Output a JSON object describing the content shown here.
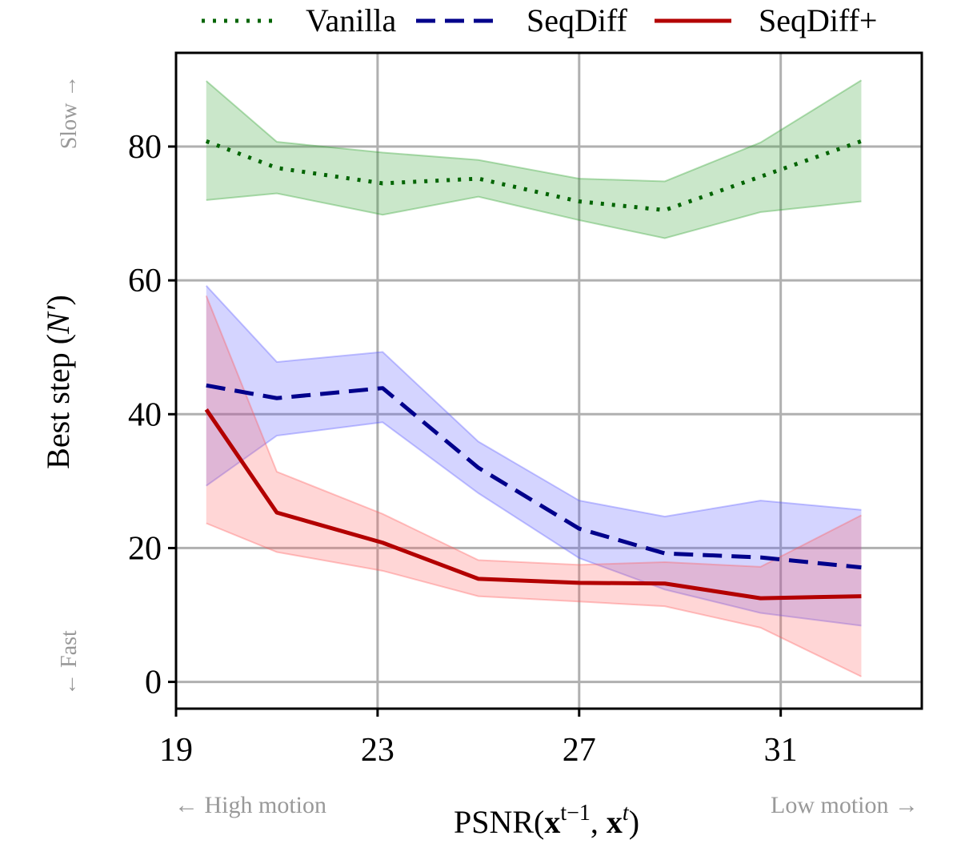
{
  "chart_data": {
    "type": "line",
    "xlabel": {
      "base": "PSNR(",
      "x1": "x",
      "sup1": "t−1",
      "sep": ", ",
      "x2": "x",
      "sup2": "t",
      "end": ")"
    },
    "ylabel": {
      "prefix": "Best step (",
      "var": "N′",
      "suffix": ")"
    },
    "xlim": [
      19,
      33.8
    ],
    "ylim": [
      -4,
      94
    ],
    "xticks": [
      19,
      23,
      27,
      31
    ],
    "yticks": [
      0,
      20,
      40,
      60,
      80
    ],
    "grid": true,
    "legend_position": "top-outside",
    "annotations": {
      "y_top": "Slow →",
      "y_bottom": "← Fast",
      "x_left": "← High motion",
      "x_right": "Low motion →"
    },
    "x": [
      19.6,
      21.0,
      23.1,
      25.0,
      27.0,
      28.7,
      30.6,
      32.6
    ],
    "series": [
      {
        "name": "Vanilla",
        "style": "dotted",
        "color": "#006400",
        "fill": "#2ca02c",
        "values": [
          80.8,
          76.8,
          74.5,
          75.2,
          71.8,
          70.5,
          75.5,
          80.8
        ],
        "lower": [
          72.0,
          73.0,
          69.8,
          72.5,
          69.0,
          66.3,
          70.2,
          71.8
        ],
        "upper": [
          89.8,
          80.7,
          79.1,
          78.0,
          75.2,
          74.8,
          80.6,
          89.9
        ]
      },
      {
        "name": "SeqDiff",
        "style": "dashed",
        "color": "#00008b",
        "fill": "#5555ff",
        "values": [
          44.3,
          42.4,
          43.9,
          32.0,
          22.9,
          19.2,
          18.6,
          17.1
        ],
        "lower": [
          29.3,
          36.8,
          38.8,
          28.2,
          18.5,
          13.8,
          10.3,
          8.4
        ],
        "upper": [
          59.2,
          47.8,
          49.3,
          35.9,
          27.1,
          24.7,
          27.1,
          25.7
        ]
      },
      {
        "name": "SeqDiff+",
        "style": "solid",
        "color": "#b30000",
        "fill": "#ff5a5a",
        "values": [
          40.7,
          25.3,
          20.8,
          15.4,
          14.8,
          14.7,
          12.5,
          12.8
        ],
        "lower": [
          23.7,
          19.4,
          16.6,
          12.8,
          12.0,
          11.3,
          8.1,
          0.8
        ],
        "upper": [
          57.7,
          31.4,
          25.1,
          18.2,
          17.5,
          17.9,
          17.2,
          24.9
        ]
      }
    ]
  }
}
